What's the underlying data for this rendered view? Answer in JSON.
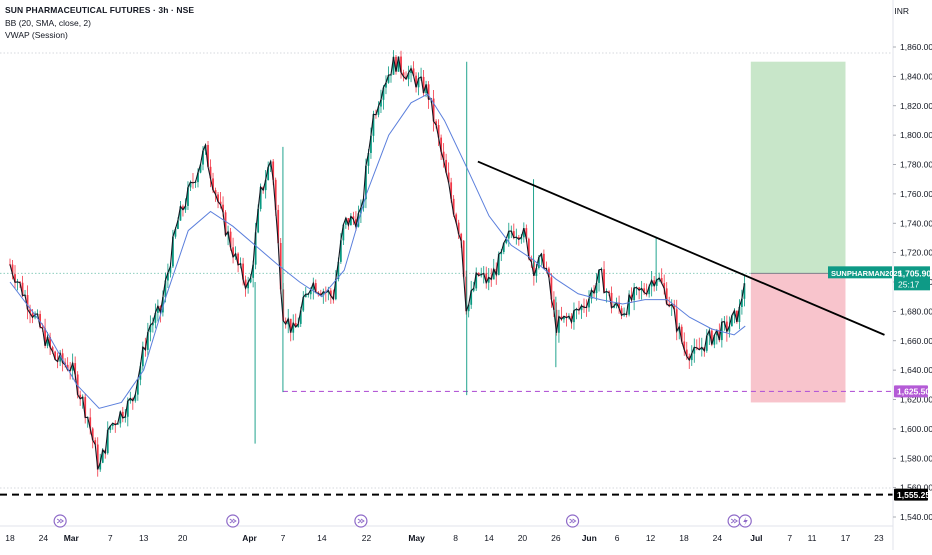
{
  "header": {
    "title": "SUN PHARMACEUTICAL FUTURES · 3h · NSE",
    "indicator_bb": "BB (20, SMA, close, 2)",
    "indicator_vwap": "VWAP (Session)",
    "currency": "INR"
  },
  "chart_data": {
    "type": "candlestick",
    "title": "SUN PHARMACEUTICAL FUTURES · 3h · NSE",
    "ylim": [
      1535,
      1870
    ],
    "y_ticks": [
      1540,
      1560,
      1580,
      1600,
      1620,
      1640,
      1660,
      1680,
      1700,
      1720,
      1740,
      1760,
      1780,
      1800,
      1820,
      1840,
      1860
    ],
    "y_tick_labels": [
      "1,540.00",
      "1,560.00",
      "1,580.00",
      "1,600.00",
      "1,620.00",
      "1,640.00",
      "1,660.00",
      "1,680.00",
      "1,700.00",
      "1,720.00",
      "1,740.00",
      "1,760.00",
      "1,780.00",
      "1,800.00",
      "1,820.00",
      "1,840.00",
      "1,860.00"
    ],
    "x_labels": [
      {
        "label": "18",
        "day": 0
      },
      {
        "label": "24",
        "day": 6
      },
      {
        "label": "Mar",
        "day": 11
      },
      {
        "label": "7",
        "day": 18
      },
      {
        "label": "13",
        "day": 24
      },
      {
        "label": "20",
        "day": 31
      },
      {
        "label": "Apr",
        "day": 43
      },
      {
        "label": "7",
        "day": 49
      },
      {
        "label": "14",
        "day": 56
      },
      {
        "label": "22",
        "day": 64
      },
      {
        "label": "May",
        "day": 73
      },
      {
        "label": "8",
        "day": 80
      },
      {
        "label": "14",
        "day": 86
      },
      {
        "label": "20",
        "day": 92
      },
      {
        "label": "26",
        "day": 98
      },
      {
        "label": "Jun",
        "day": 104
      },
      {
        "label": "6",
        "day": 109
      },
      {
        "label": "12",
        "day": 115
      },
      {
        "label": "18",
        "day": 121
      },
      {
        "label": "24",
        "day": 127
      },
      {
        "label": "Jul",
        "day": 134
      },
      {
        "label": "7",
        "day": 140
      },
      {
        "label": "11",
        "day": 144
      },
      {
        "label": "17",
        "day": 150
      },
      {
        "label": "23",
        "day": 156
      }
    ],
    "price_path": [
      {
        "day": 0,
        "price": 1712
      },
      {
        "day": 4,
        "price": 1680
      },
      {
        "day": 8,
        "price": 1648
      },
      {
        "day": 11,
        "price": 1642
      },
      {
        "day": 14,
        "price": 1608
      },
      {
        "day": 16,
        "price": 1572
      },
      {
        "day": 18,
        "price": 1602
      },
      {
        "day": 22,
        "price": 1620
      },
      {
        "day": 25,
        "price": 1670
      },
      {
        "day": 27,
        "price": 1680
      },
      {
        "day": 30,
        "price": 1740
      },
      {
        "day": 33,
        "price": 1770
      },
      {
        "day": 35,
        "price": 1790
      },
      {
        "day": 38,
        "price": 1745
      },
      {
        "day": 41,
        "price": 1710
      },
      {
        "day": 43,
        "price": 1695
      },
      {
        "day": 45,
        "price": 1760
      },
      {
        "day": 47,
        "price": 1785
      },
      {
        "day": 49,
        "price": 1680
      },
      {
        "day": 51,
        "price": 1665
      },
      {
        "day": 54,
        "price": 1700
      },
      {
        "day": 56,
        "price": 1695
      },
      {
        "day": 58,
        "price": 1690
      },
      {
        "day": 60,
        "price": 1740
      },
      {
        "day": 63,
        "price": 1745
      },
      {
        "day": 65,
        "price": 1810
      },
      {
        "day": 67,
        "price": 1835
      },
      {
        "day": 69,
        "price": 1850
      },
      {
        "day": 72,
        "price": 1840
      },
      {
        "day": 75,
        "price": 1830
      },
      {
        "day": 77,
        "price": 1795
      },
      {
        "day": 79,
        "price": 1760
      },
      {
        "day": 81,
        "price": 1730
      },
      {
        "day": 82,
        "price": 1680
      },
      {
        "day": 84,
        "price": 1705
      },
      {
        "day": 86,
        "price": 1700
      },
      {
        "day": 88,
        "price": 1715
      },
      {
        "day": 90,
        "price": 1735
      },
      {
        "day": 92,
        "price": 1735
      },
      {
        "day": 94,
        "price": 1710
      },
      {
        "day": 96,
        "price": 1715
      },
      {
        "day": 98,
        "price": 1670
      },
      {
        "day": 100,
        "price": 1675
      },
      {
        "day": 102,
        "price": 1680
      },
      {
        "day": 104,
        "price": 1690
      },
      {
        "day": 106,
        "price": 1705
      },
      {
        "day": 108,
        "price": 1685
      },
      {
        "day": 110,
        "price": 1680
      },
      {
        "day": 112,
        "price": 1690
      },
      {
        "day": 114,
        "price": 1695
      },
      {
        "day": 116,
        "price": 1705
      },
      {
        "day": 118,
        "price": 1690
      },
      {
        "day": 119,
        "price": 1680
      },
      {
        "day": 121,
        "price": 1655
      },
      {
        "day": 123,
        "price": 1650
      },
      {
        "day": 125,
        "price": 1660
      },
      {
        "day": 127,
        "price": 1665
      },
      {
        "day": 129,
        "price": 1670
      },
      {
        "day": 131,
        "price": 1680
      },
      {
        "day": 132,
        "price": 1705.9
      }
    ],
    "bollinger_basis": [
      {
        "day": 0,
        "price": 1700
      },
      {
        "day": 6,
        "price": 1670
      },
      {
        "day": 12,
        "price": 1630
      },
      {
        "day": 16,
        "price": 1614
      },
      {
        "day": 20,
        "price": 1618
      },
      {
        "day": 24,
        "price": 1640
      },
      {
        "day": 28,
        "price": 1690
      },
      {
        "day": 32,
        "price": 1735
      },
      {
        "day": 36,
        "price": 1748
      },
      {
        "day": 40,
        "price": 1738
      },
      {
        "day": 44,
        "price": 1725
      },
      {
        "day": 48,
        "price": 1712
      },
      {
        "day": 52,
        "price": 1700
      },
      {
        "day": 56,
        "price": 1690
      },
      {
        "day": 60,
        "price": 1708
      },
      {
        "day": 64,
        "price": 1760
      },
      {
        "day": 68,
        "price": 1800
      },
      {
        "day": 72,
        "price": 1822
      },
      {
        "day": 75,
        "price": 1828
      },
      {
        "day": 78,
        "price": 1810
      },
      {
        "day": 82,
        "price": 1778
      },
      {
        "day": 86,
        "price": 1745
      },
      {
        "day": 90,
        "price": 1725
      },
      {
        "day": 94,
        "price": 1715
      },
      {
        "day": 98,
        "price": 1702
      },
      {
        "day": 102,
        "price": 1692
      },
      {
        "day": 106,
        "price": 1688
      },
      {
        "day": 110,
        "price": 1685
      },
      {
        "day": 114,
        "price": 1688
      },
      {
        "day": 118,
        "price": 1688
      },
      {
        "day": 122,
        "price": 1676
      },
      {
        "day": 126,
        "price": 1668
      },
      {
        "day": 130,
        "price": 1664
      },
      {
        "day": 132,
        "price": 1670
      }
    ],
    "trend_line": {
      "start": {
        "day": 84,
        "price": 1782
      },
      "end": {
        "day": 157,
        "price": 1664
      }
    },
    "support_level": {
      "price": 1625.5,
      "label": "1,625.50",
      "from_day": 49
    },
    "last_price": {
      "price": 1705.9,
      "label": "1,705.90",
      "symbol": "SUNPHARMAN2025",
      "countdown": "25:17"
    },
    "bottom_level": {
      "price": 1555.25,
      "label": "1,555.25"
    },
    "position": {
      "entry": 1705.9,
      "target": 1850,
      "stop": 1618,
      "from_day": 133,
      "to_day": 150
    },
    "event_markers": [
      {
        "day": 9,
        "type": "dividend"
      },
      {
        "day": 40,
        "type": "dividend"
      },
      {
        "day": 63,
        "type": "dividend"
      },
      {
        "day": 101,
        "type": "dividend"
      },
      {
        "day": 130,
        "type": "dividend"
      },
      {
        "day": 132,
        "type": "earnings"
      }
    ],
    "colors": {
      "up_candle": "#089981",
      "down_candle": "#f23645",
      "price_line": "#131722",
      "bollinger": "#5b7fdc",
      "trendline": "#000000",
      "support": "#b45bd6",
      "target_zone": "#c8e6c9",
      "stop_zone": "#f8c4cc",
      "last_price_tag": "#0e9a86",
      "event_icon": "#8e6ac8"
    },
    "grid": false,
    "legend": "top-left"
  }
}
